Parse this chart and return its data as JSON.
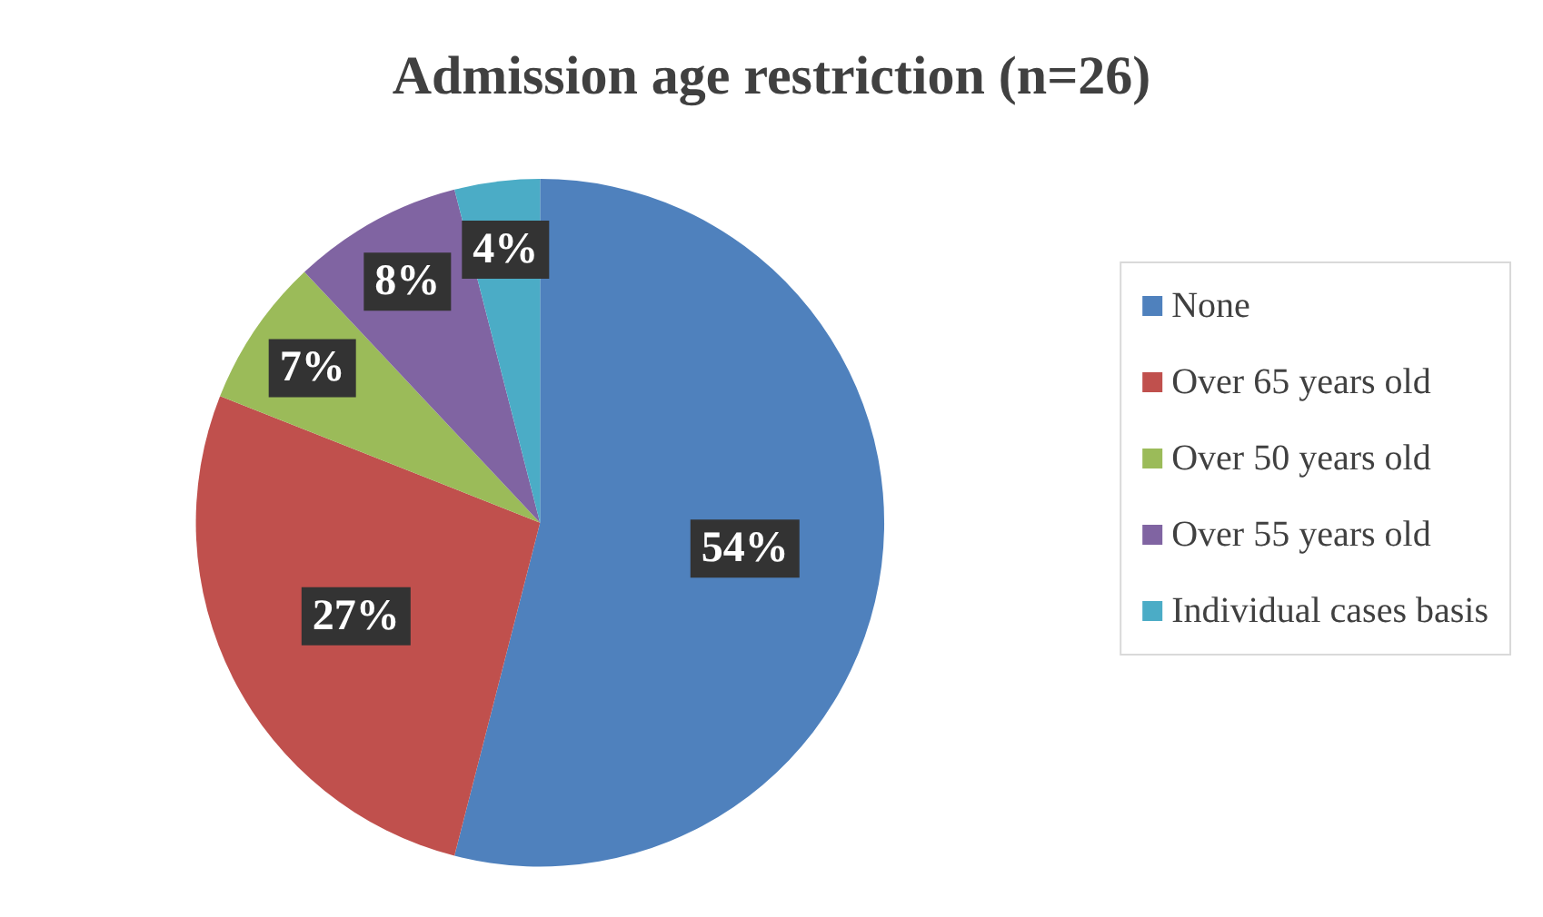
{
  "chart_data": {
    "type": "pie",
    "title": "Admission age restriction (n=26)",
    "categories": [
      "None",
      "Over 65 years old",
      "Over 50 years old",
      "Over 55 years old",
      "Individual cases basis"
    ],
    "values": [
      54,
      27,
      7,
      8,
      4
    ],
    "colors": [
      "#4f81bd",
      "#c0504d",
      "#9bbb59",
      "#8064a2",
      "#4bacc6"
    ],
    "value_labels": [
      "54%",
      "27%",
      "7%",
      "8%",
      "4%"
    ],
    "legend": "right"
  }
}
